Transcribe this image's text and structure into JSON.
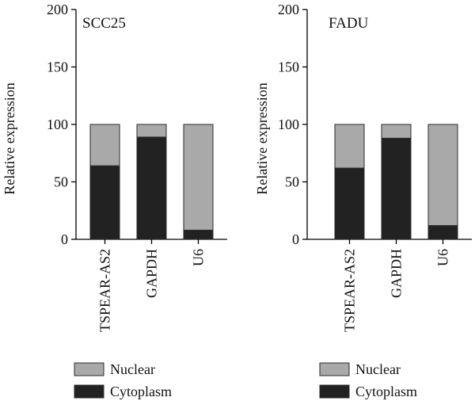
{
  "colors": {
    "Nuclear": "#a9a9a9",
    "Cytoplasm": "#222222"
  },
  "chart_data": [
    {
      "type": "bar",
      "stacked": true,
      "title": "SCC25",
      "ylabel": "Relative expression",
      "xlabel": "",
      "ylim": [
        0,
        200
      ],
      "yticks": [
        0,
        50,
        100,
        150,
        200
      ],
      "categories": [
        "TSPEAR-AS2",
        "GAPDH",
        "U6"
      ],
      "series": [
        {
          "name": "Cytoplasm",
          "values": [
            64,
            89,
            8
          ]
        },
        {
          "name": "Nuclear",
          "values": [
            36,
            11,
            92
          ]
        }
      ],
      "legend": [
        "Nuclear",
        "Cytoplasm"
      ],
      "legend_position": "bottom"
    },
    {
      "type": "bar",
      "stacked": true,
      "title": "FADU",
      "ylabel": "Relative expression",
      "xlabel": "",
      "ylim": [
        0,
        200
      ],
      "yticks": [
        0,
        50,
        100,
        150,
        200
      ],
      "categories": [
        "TSPEAR-AS2",
        "GAPDH",
        "U6"
      ],
      "series": [
        {
          "name": "Cytoplasm",
          "values": [
            62,
            88,
            12
          ]
        },
        {
          "name": "Nuclear",
          "values": [
            38,
            12,
            88
          ]
        }
      ],
      "legend": [
        "Nuclear",
        "Cytoplasm"
      ],
      "legend_position": "bottom"
    }
  ]
}
